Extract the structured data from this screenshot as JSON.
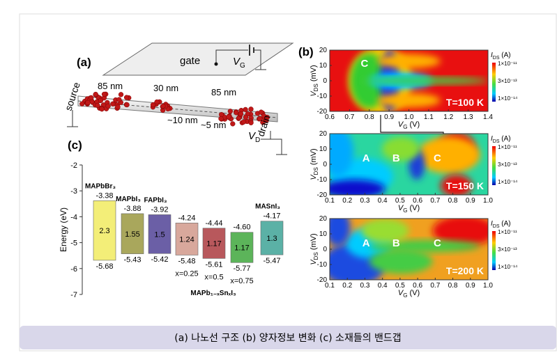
{
  "caption": "(a) 나노선 구조 (b) 양자정보 변화 (c) 소재들의 밴드갭",
  "panel_a": {
    "label": "(a)",
    "gate": "gate",
    "vg": {
      "main": "V",
      "sub": "G"
    },
    "vd": {
      "main": "V",
      "sub": "D"
    },
    "source": "source",
    "drain": "drain",
    "dims": [
      "85 nm",
      "30 nm",
      "85 nm",
      "~10 nm",
      "~5 nm"
    ]
  },
  "panel_b": {
    "label": "(b)",
    "ylabel": {
      "main": "V",
      "sub": "DS",
      "unit": " (mV)"
    },
    "xlabel": {
      "main": "V",
      "sub": "G",
      "unit": " (V)"
    },
    "cbar_title": {
      "main": "I",
      "sub": "DS",
      "unit": " (A)"
    },
    "cbar_ticks": [
      "1×10⁻¹¹",
      "3×10⁻¹³",
      "1×10⁻¹⁴"
    ],
    "plots": [
      {
        "xticks": [
          "0.6",
          "0.7",
          "0.8",
          "0.9",
          "1.0",
          "1.1",
          "1.2",
          "1.3",
          "1.4"
        ],
        "yticks": [
          "20",
          "10",
          "0",
          "-10",
          "-20"
        ],
        "temperature": "T=100 K",
        "peaks": [
          "C"
        ]
      },
      {
        "xticks": [
          "0.1",
          "0.2",
          "0.3",
          "0.4",
          "0.5",
          "0.6",
          "0.7",
          "0.8",
          "0.9",
          "1.0"
        ],
        "yticks": [
          "20",
          "10",
          "0",
          "-10",
          "-20"
        ],
        "temperature": "T=150 K",
        "peaks": [
          "A",
          "B",
          "C"
        ]
      },
      {
        "xticks": [
          "0.1",
          "0.2",
          "0.3",
          "0.4",
          "0.5",
          "0.6",
          "0.7",
          "0.8",
          "0.9",
          "1.0"
        ],
        "yticks": [
          "20",
          "10",
          "0",
          "-10",
          "-20"
        ],
        "temperature": "T=200 K",
        "peaks": [
          "A",
          "B",
          "C"
        ]
      }
    ]
  },
  "chart_data": {
    "type": "floating-bar",
    "title": "(c)",
    "ylabel": "Energy (eV)",
    "categories": [
      "MAPbBr₃",
      "MAPbI₃",
      "FAPbI₃",
      "x=0.25",
      "x=0.5",
      "x=0.75",
      "MASnI₃"
    ],
    "group_label": "MAPb₁₋ₓSnₓI₃",
    "top": [
      -3.38,
      -3.88,
      -3.92,
      -4.24,
      -4.44,
      -4.6,
      -4.17
    ],
    "top_value_labels": [
      "-3.38",
      "-3.88",
      "-3.92",
      "-4.24",
      "-4.44",
      "-4.60",
      "-4.17"
    ],
    "bottom": [
      -5.68,
      -5.43,
      -5.42,
      -5.48,
      -5.61,
      -5.77,
      -5.47
    ],
    "gaps": [
      2.3,
      1.55,
      1.5,
      1.24,
      1.17,
      1.17,
      1.3
    ],
    "colors": [
      "#f3ee78",
      "#a9a75c",
      "#6b5fa6",
      "#d8a89c",
      "#b8585c",
      "#5cb45a",
      "#5bb1a6"
    ],
    "ylim": [
      -7,
      -2
    ],
    "yticks": [
      -2,
      -3,
      -4,
      -5,
      -6,
      -7
    ]
  }
}
